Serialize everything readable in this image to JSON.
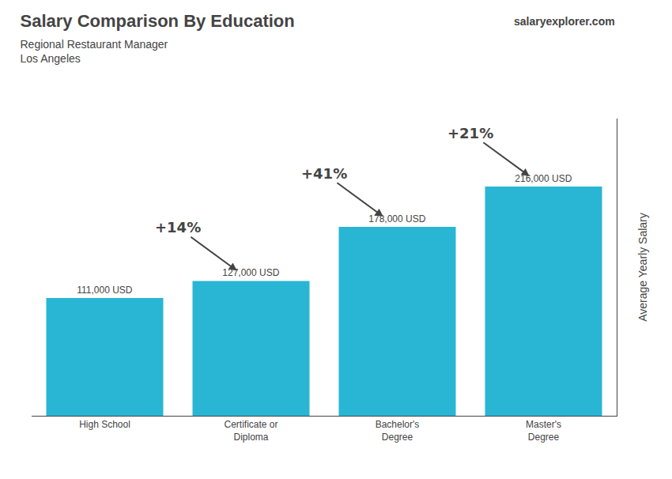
{
  "chart_data": {
    "type": "bar",
    "title": "Salary Comparison By Education",
    "subtitle": [
      "Regional Restaurant Manager",
      "Los Angeles"
    ],
    "ylabel": "Average Yearly Salary",
    "categories": [
      "High School",
      "Certificate or\nDiploma",
      "Bachelor's\nDegree",
      "Master's\nDegree"
    ],
    "values": [
      111000,
      127000,
      178000,
      216000
    ],
    "value_labels": [
      "111,000 USD",
      "127,000 USD",
      "178,000 USD",
      "216,000 USD"
    ],
    "data_labels": true,
    "color": "#29b6d4",
    "ylim": [
      0,
      280000
    ],
    "yticks": [],
    "tick_labels": "x",
    "grid": false,
    "annotations": [
      {
        "text": "salaryexplorer.com"
      },
      {
        "text": "+14%",
        "from": "High School",
        "to": "Certificate or\nDiploma"
      },
      {
        "text": "+41%",
        "from": "Certificate or\nDiploma",
        "to": "Bachelor's\nDegree"
      },
      {
        "text": "+21%",
        "from": "Bachelor's\nDegree",
        "to": "Master's\nDegree"
      }
    ]
  }
}
